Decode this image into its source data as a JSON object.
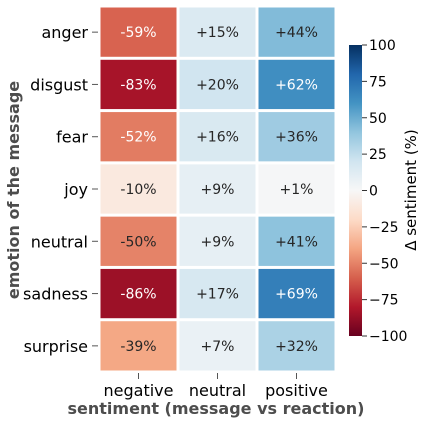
{
  "chart_data": {
    "type": "heatmap",
    "title": "",
    "xlabel": "sentiment (message vs reaction)",
    "ylabel": "emotion of the message",
    "x_categories": [
      "negative",
      "neutral",
      "positive"
    ],
    "y_categories": [
      "anger",
      "disgust",
      "fear",
      "joy",
      "neutral",
      "sadness",
      "surprise"
    ],
    "values": [
      [
        -59,
        15,
        44
      ],
      [
        -83,
        20,
        62
      ],
      [
        -52,
        16,
        36
      ],
      [
        -10,
        9,
        1
      ],
      [
        -50,
        9,
        41
      ],
      [
        -86,
        17,
        69
      ],
      [
        -39,
        7,
        32
      ]
    ],
    "cell_labels": [
      [
        "-59%",
        "+15%",
        "+44%"
      ],
      [
        "-83%",
        "+20%",
        "+62%"
      ],
      [
        "-52%",
        "+16%",
        "+36%"
      ],
      [
        "-10%",
        "+9%",
        "+1%"
      ],
      [
        "-50%",
        "+9%",
        "+41%"
      ],
      [
        "-86%",
        "+17%",
        "+69%"
      ],
      [
        "-39%",
        "+7%",
        "+32%"
      ]
    ],
    "colorbar": {
      "label": "Δ sentiment (%)",
      "range": [
        -100,
        100
      ],
      "ticks": [
        -100,
        -75,
        -50,
        -25,
        0,
        25,
        50,
        75,
        100
      ],
      "tick_labels": [
        "−100",
        "−75",
        "−50",
        "−25",
        "0",
        "25",
        "50",
        "75",
        "100"
      ],
      "colormap": "RdBu",
      "colors": [
        "#67001f",
        "#b2182b",
        "#d6604d",
        "#f4a582",
        "#fddbc7",
        "#f7f7f7",
        "#d1e5f0",
        "#92c5de",
        "#4393c3",
        "#2166ac",
        "#053061"
      ]
    }
  }
}
